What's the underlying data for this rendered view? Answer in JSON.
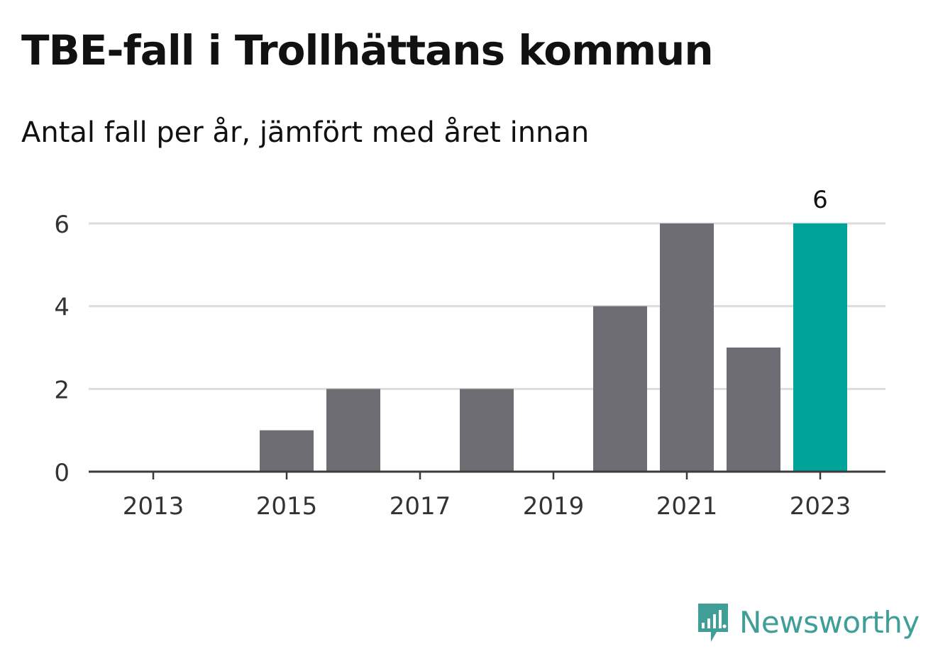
{
  "header": {
    "title": "TBE-fall i Trollhättans kommun",
    "subtitle": "Antal fall per år, jämfört med året innan"
  },
  "brand": {
    "name": "Newsworthy",
    "icon": "newsworthy-logo-icon",
    "color": "#3f9f98"
  },
  "colors": {
    "bar": "#6e6d73",
    "highlight": "#00a39a",
    "grid": "#dddddd",
    "axis": "#3b3b3b"
  },
  "chart_data": {
    "type": "bar",
    "categories": [
      "2013",
      "2014",
      "2015",
      "2016",
      "2017",
      "2018",
      "2019",
      "2020",
      "2021",
      "2022",
      "2023"
    ],
    "values": [
      0,
      0,
      1,
      2,
      0,
      2,
      0,
      4,
      6,
      3,
      6
    ],
    "title": "TBE-fall i Trollhättans kommun",
    "subtitle": "Antal fall per år, jämfört med året innan",
    "xlabel": "",
    "ylabel": "",
    "ylim": [
      0,
      6
    ],
    "yticks": [
      "0",
      "2",
      "4",
      "6"
    ],
    "xticks": [
      "2013",
      "2015",
      "2017",
      "2019",
      "2021",
      "2023"
    ],
    "highlight": {
      "category": "2023",
      "label": "6"
    },
    "grid": true,
    "legend": "none"
  }
}
